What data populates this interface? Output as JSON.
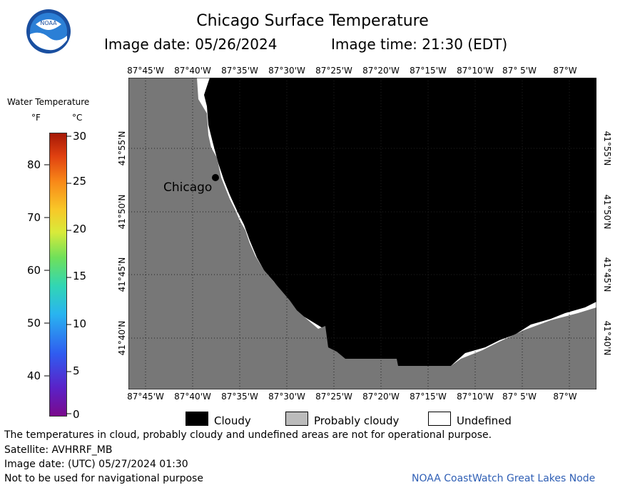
{
  "header": {
    "title": "Chicago Surface Temperature",
    "image_date": "Image date: 05/26/2024",
    "image_time": "Image time: 21:30 (EDT)"
  },
  "logo": {
    "text": "NOAA"
  },
  "legend": {
    "title": "Water Temperature",
    "unit_f": "°F",
    "unit_c": "°C",
    "f_ticks": [
      "80",
      "70",
      "60",
      "50",
      "40"
    ],
    "c_ticks": [
      "30",
      "25",
      "20",
      "15",
      "10",
      "5",
      "0"
    ]
  },
  "map": {
    "lon_labels": [
      "87°45'W",
      "87°40'W",
      "87°35'W",
      "87°30'W",
      "87°25'W",
      "87°20'W",
      "87°15'W",
      "87°10'W",
      "87° 5'W",
      "87°W"
    ],
    "lat_labels": [
      "41°55'N",
      "41°50'N",
      "41°45'N",
      "41°40'N"
    ],
    "city_label": "Chicago",
    "colors": {
      "land": "#777777",
      "cloud": "#000000",
      "undefined": "#ffffff",
      "probably_cloudy": "#bbbbbb"
    }
  },
  "key": {
    "cloudy": "Cloudy",
    "probably_cloudy": "Probably cloudy",
    "undefined": "Undefined"
  },
  "footer": {
    "note": "The temperatures in cloud, probably cloudy and undefined areas are not for operational purpose.",
    "satellite": "Satellite: AVHRRF_MB",
    "utc_date": "Image date: (UTC) 05/27/2024  01:30",
    "nav": "Not to be used for navigational purpose",
    "node": "NOAA CoastWatch Great Lakes Node"
  }
}
